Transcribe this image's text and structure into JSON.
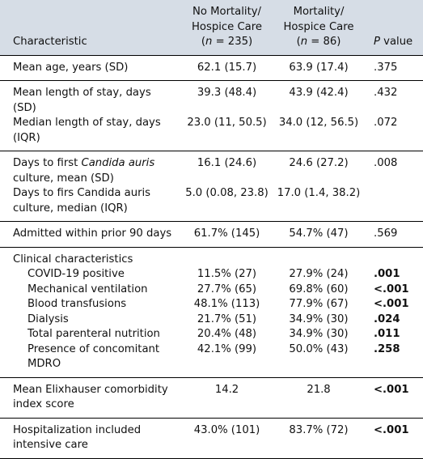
{
  "header": {
    "characteristic": "Characteristic",
    "group1_line1": "No Mortality/",
    "group1_line2": "Hospice Care",
    "group1_n_open": "(",
    "group1_n_var": "n",
    "group1_n_value": " = 235)",
    "group2_line1": "Mortality/",
    "group2_line2": "Hospice Care",
    "group2_n_open": "(",
    "group2_n_var": "n",
    "group2_n_value": " = 86)",
    "pvalue_p": "P",
    "pvalue_rest": " value"
  },
  "rows": {
    "age": {
      "label": "Mean age, years (SD)",
      "g1": "62.1 (15.7)",
      "g2": "63.9 (17.4)",
      "p": ".375"
    },
    "los_mean": {
      "label": "Mean length of stay, days (SD)",
      "g1": "39.3 (48.4)",
      "g2": "43.9 (42.4)",
      "p": ".432"
    },
    "los_median": {
      "label": "Median length of stay, days (IQR)",
      "g1": "23.0 (11, 50.5)",
      "g2": "34.0 (12, 56.5)",
      "p": ".072"
    },
    "days_mean": {
      "label_pre": "Days to first ",
      "label_it": "Candida auris",
      "label_post": " culture, mean (SD)",
      "g1": "16.1 (24.6)",
      "g2": "24.6 (27.2)",
      "p": ".008"
    },
    "days_median": {
      "label": "Days to firs Candida auris culture, median (IQR)",
      "g1": "5.0 (0.08, 23.8)",
      "g2": "17.0 (1.4, 38.2)",
      "p": ""
    },
    "admitted": {
      "label": "Admitted within prior 90 days",
      "g1": "61.7% (145)",
      "g2": "54.7% (47)",
      "p": ".569"
    },
    "clinical_header": {
      "label": "Clinical characteristics"
    },
    "covid": {
      "label": "COVID-19 positive",
      "g1": "11.5% (27)",
      "g2": "27.9% (24)",
      "p": ".001"
    },
    "mech": {
      "label": "Mechanical ventilation",
      "g1": "27.7% (65)",
      "g2": "69.8% (60)",
      "p": "<.001"
    },
    "blood": {
      "label": "Blood transfusions",
      "g1": "48.1% (113)",
      "g2": "77.9% (67)",
      "p": "<.001"
    },
    "dialysis": {
      "label": "Dialysis",
      "g1": "21.7% (51)",
      "g2": "34.9% (30)",
      "p": ".024"
    },
    "tpn": {
      "label": "Total parenteral nutrition",
      "g1": "20.4% (48)",
      "g2": "34.9% (30)",
      "p": ".011"
    },
    "mdro": {
      "label": "Presence of concomitant MDRO",
      "g1": "42.1% (99)",
      "g2": "50.0% (43)",
      "p": ".258"
    },
    "elix": {
      "label": "Mean Elixhauser comorbidity index score",
      "g1": "14.2",
      "g2": "21.8",
      "p": "<.001"
    },
    "icu": {
      "label": "Hospitalization included intensive care",
      "g1": "43.0% (101)",
      "g2": "83.7% (72)",
      "p": "<.001"
    }
  }
}
